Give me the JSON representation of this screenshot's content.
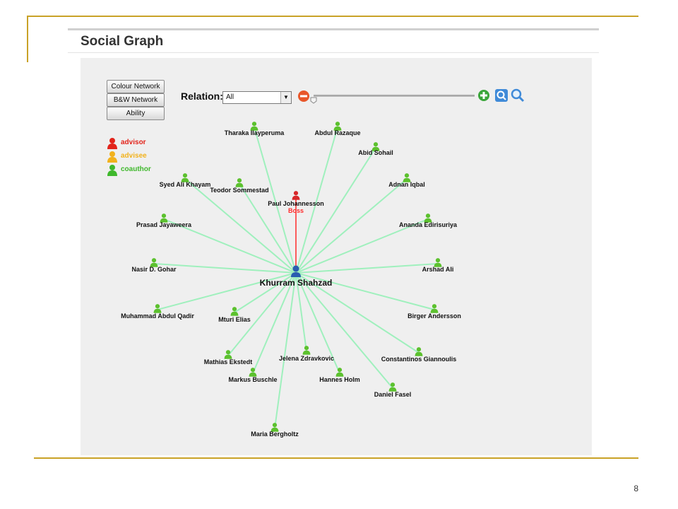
{
  "page": {
    "title": "Social Graph",
    "slide_number": "8"
  },
  "controls": {
    "buttons": [
      "Colour Network",
      "B&W Network",
      "Ability"
    ],
    "relation_label": "Relation:",
    "relation_value": "All",
    "zoom_level": 0
  },
  "legend": [
    {
      "label": "advisor",
      "color": "#e2241b"
    },
    {
      "label": "advisee",
      "color": "#f2b21c"
    },
    {
      "label": "coauthor",
      "color": "#3fb82c"
    }
  ],
  "colors": {
    "coauthor_edge": "#9ff0bd",
    "advisor_edge": "#ff2b2b",
    "center_node": "#2a5db0",
    "coauthor_node": "#5cc12e",
    "advisor_node": "#d8282a"
  },
  "graph": {
    "center": {
      "name": "Khurram Shahzad"
    },
    "nodes": [
      {
        "name": "Paul Johannesson",
        "relation": "advisor",
        "tag": "Boss"
      },
      {
        "name": "Tharaka Ilayperuma",
        "relation": "coauthor"
      },
      {
        "name": "Abdul Razaque",
        "relation": "coauthor"
      },
      {
        "name": "Abid Sohail",
        "relation": "coauthor"
      },
      {
        "name": "Syed Ali Khayam",
        "relation": "coauthor"
      },
      {
        "name": "Teodor Sommestad",
        "relation": "coauthor"
      },
      {
        "name": "Adnan Iqbal",
        "relation": "coauthor"
      },
      {
        "name": "Prasad Jayaweera",
        "relation": "coauthor"
      },
      {
        "name": "Ananda Edirisuriya",
        "relation": "coauthor"
      },
      {
        "name": "Nasir D. Gohar",
        "relation": "coauthor"
      },
      {
        "name": "Arshad Ali",
        "relation": "coauthor"
      },
      {
        "name": "Muhammad Abdul Qadir",
        "relation": "coauthor"
      },
      {
        "name": "Mturi Elias",
        "relation": "coauthor"
      },
      {
        "name": "Birger Andersson",
        "relation": "coauthor"
      },
      {
        "name": "Mathias Ekstedt",
        "relation": "coauthor"
      },
      {
        "name": "Jelena Zdravkovic",
        "relation": "coauthor"
      },
      {
        "name": "Constantinos Giannoulis",
        "relation": "coauthor"
      },
      {
        "name": "Markus Buschle",
        "relation": "coauthor"
      },
      {
        "name": "Hannes Holm",
        "relation": "coauthor"
      },
      {
        "name": "Daniel Fasel",
        "relation": "coauthor"
      },
      {
        "name": "Maria Bergholtz",
        "relation": "coauthor"
      }
    ]
  }
}
